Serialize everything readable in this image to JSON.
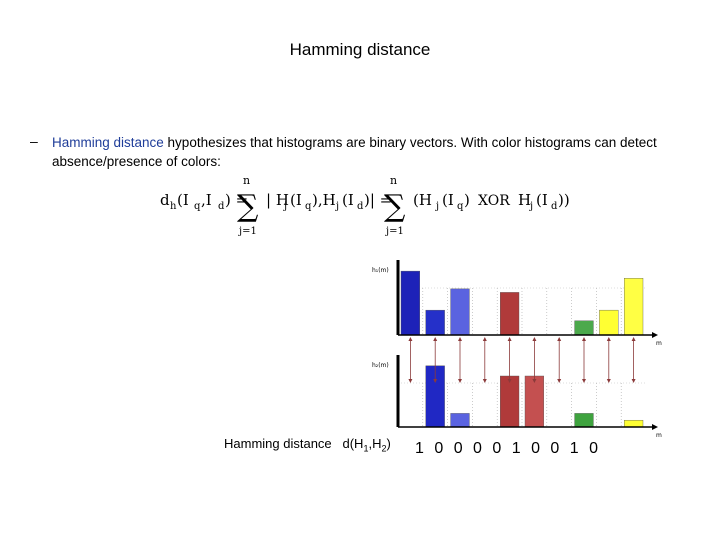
{
  "slide": {
    "title": "Hamming distance",
    "bullet_marker": "–",
    "bullet_highlight": "Hamming distance",
    "bullet_rest": " hypothesizes that histograms are binary vectors. With color histograms can detect absence/presence of colors:"
  },
  "formula": {
    "lhs": "d",
    "lhs_sub": "h",
    "args": "(I",
    "q": "q",
    "comma": ",I",
    "d": "d",
    "close": ") =",
    "n_top": "n",
    "j_bottom": "j=1",
    "term1": "| H",
    "term1b": "(I",
    "term1c": "),H",
    "term1d": "(I",
    "term1e": ")| =",
    "term2": "(H",
    "xor": "XOR",
    "term2b": "H",
    "end": "))",
    "j": "j"
  },
  "chart_data": [
    {
      "type": "bar",
      "ylabel": "h₁(m)",
      "xlabel": "m",
      "bins": 10,
      "values": [
        0.9,
        0.35,
        0.65,
        0,
        0.6,
        0,
        0,
        0.2,
        0.35,
        0.8
      ],
      "colors": [
        "#1d22b8",
        "#2530c9",
        "#5a63e0",
        "#ffffff",
        "#b03a3a",
        "#ffffff",
        "#ffffff",
        "#4ca94c",
        "#ffff33",
        "#ffff44"
      ]
    },
    {
      "type": "bar",
      "ylabel": "h₂(m)",
      "xlabel": "m",
      "bins": 10,
      "values": [
        0,
        0.9,
        0.2,
        0,
        0.75,
        0.75,
        0,
        0.2,
        0,
        0.1
      ],
      "colors": [
        "#ffffff",
        "#2028c4",
        "#5a63e0",
        "#ffffff",
        "#b03a3a",
        "#c45050",
        "#ffffff",
        "#3fa33f",
        "#ffffff",
        "#ffff33"
      ]
    }
  ],
  "footer": {
    "label": "Hamming distance",
    "d": "d(H",
    "sub1": "1",
    "comma": ",H",
    "sub2": "2",
    "close": ")",
    "bits": "1 0 0 0 0 1 0 0 1 0"
  }
}
